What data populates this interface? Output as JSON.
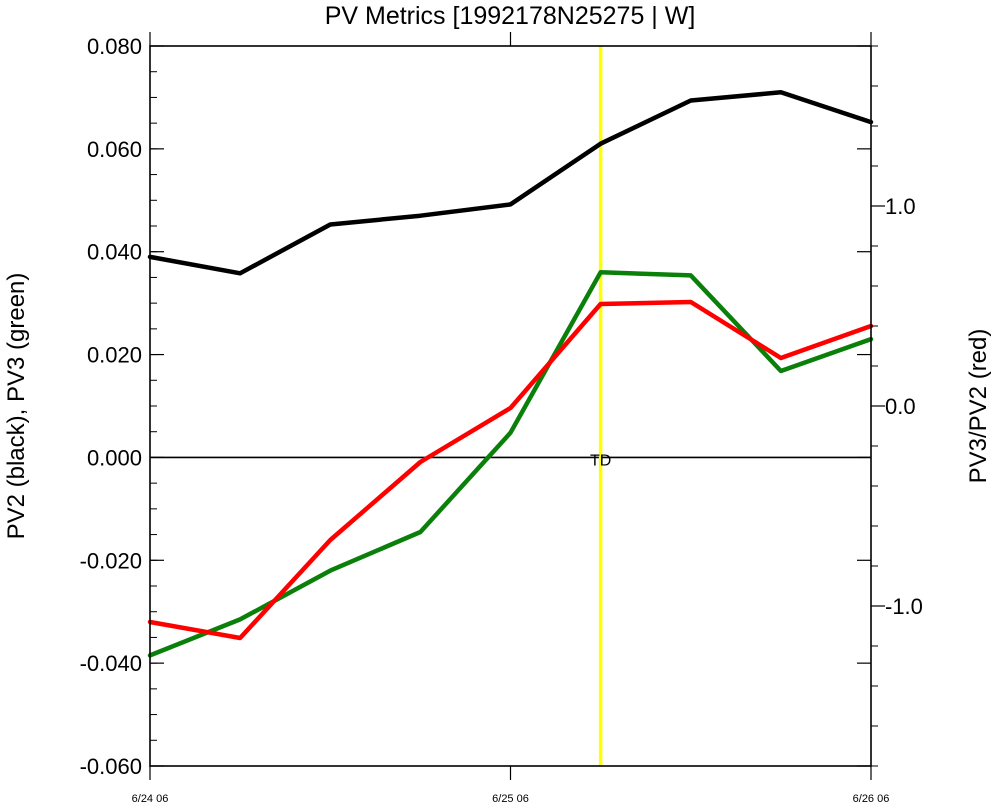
{
  "chart_data": {
    "type": "line",
    "title": "PV Metrics [1992178N25275 | W]",
    "ylabel_left": "PV2 (black), PV3 (green)",
    "ylabel_right": "PV3/PV2 (red)",
    "x_tick_labels": [
      "6/24 06",
      "6/25 06",
      "6/26 06"
    ],
    "x_tick_values": [
      0,
      24,
      48
    ],
    "xlim": [
      0,
      48
    ],
    "ylim_left": [
      -0.06,
      0.08
    ],
    "ylim_right": [
      -1.8,
      1.8
    ],
    "y_left_ticks": [
      -0.06,
      -0.04,
      -0.02,
      0.0,
      0.02,
      0.04,
      0.06,
      0.08
    ],
    "y_left_tick_labels": [
      "-0.060",
      "-0.040",
      "-0.020",
      "0.000",
      "0.020",
      "0.040",
      "0.060",
      "0.080"
    ],
    "y_right_ticks": [
      -1.0,
      0.0,
      1.0
    ],
    "y_right_tick_labels": [
      "-1.0",
      "0.0",
      "1.0"
    ],
    "x": [
      0,
      6,
      12,
      18,
      24,
      30,
      36,
      42,
      48
    ],
    "series": [
      {
        "color": "#000000",
        "axis": "left",
        "values": [
          0.039,
          0.0358,
          0.0453,
          0.047,
          0.0492,
          0.061,
          0.0694,
          0.071,
          0.0652
        ]
      },
      {
        "color": "#0a800a",
        "axis": "left",
        "values": [
          -0.0385,
          -0.0315,
          -0.022,
          -0.0145,
          0.0048,
          0.036,
          0.0354,
          0.0168,
          0.023
        ]
      },
      {
        "color": "#ff0000",
        "axis": "right",
        "values": [
          -1.08,
          -1.16,
          -0.67,
          -0.28,
          -0.01,
          0.51,
          0.52,
          0.24,
          0.4
        ]
      }
    ],
    "zero_line": 0.0,
    "marker_line": {
      "x": 30,
      "color": "#ffff00"
    },
    "annotations": [
      {
        "text": "TD",
        "x": 30,
        "y": 0.0
      }
    ],
    "grid": false
  }
}
